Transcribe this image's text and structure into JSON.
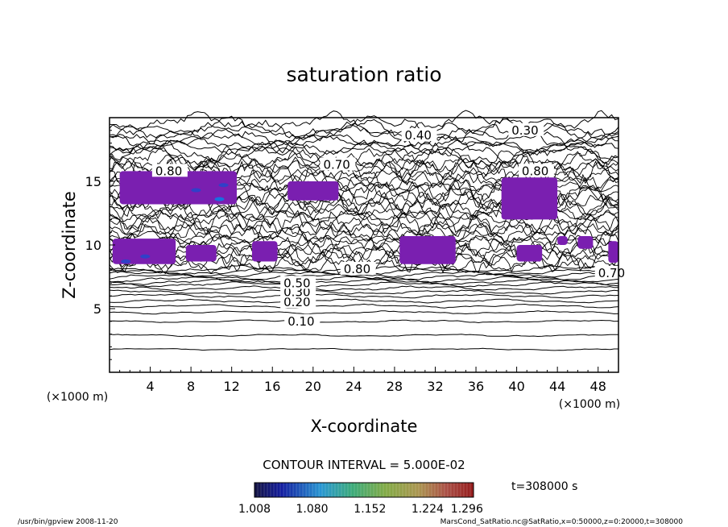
{
  "chart_data": {
    "type": "contour",
    "title": "saturation ratio",
    "xlabel": "X-coordinate",
    "ylabel": "Z-coordinate",
    "x_unit": "(×1000 m)",
    "z_unit": "(×1000 m)",
    "xlim": [
      0,
      50
    ],
    "ylim": [
      0,
      20
    ],
    "x_ticks": [
      "4",
      "8",
      "12",
      "16",
      "20",
      "24",
      "28",
      "32",
      "36",
      "40",
      "44",
      "48"
    ],
    "y_ticks": [
      "5",
      "10",
      "15"
    ],
    "contour_interval_text": "CONTOUR INTERVAL = 5.000E-02",
    "time_text": "t=308000 s",
    "colorbar_ticks": [
      "1.008",
      "1.080",
      "1.152",
      "1.224",
      "1.296"
    ],
    "contour_labels": [
      {
        "text": "0.10",
        "x": 17.5,
        "z": 4.0
      },
      {
        "text": "0.20",
        "x": 17.1,
        "z": 5.5
      },
      {
        "text": "0.30",
        "x": 17.1,
        "z": 6.3
      },
      {
        "text": "0.50",
        "x": 17.1,
        "z": 7.0
      },
      {
        "text": "0.80",
        "x": 23.0,
        "z": 8.1
      },
      {
        "text": "0.70",
        "x": 48.0,
        "z": 7.8
      },
      {
        "text": "0.30",
        "x": 39.5,
        "z": 19.0
      },
      {
        "text": "0.40",
        "x": 29.0,
        "z": 18.6
      },
      {
        "text": "0.70",
        "x": 21.0,
        "z": 16.3
      },
      {
        "text": "0.80",
        "x": 40.5,
        "z": 15.8
      },
      {
        "text": "0.80",
        "x": 4.5,
        "z": 15.8
      }
    ],
    "supersaturated_regions": [
      {
        "x": [
          1.0,
          12.5
        ],
        "z": [
          13.2,
          15.8
        ]
      },
      {
        "x": [
          17.5,
          22.5
        ],
        "z": [
          13.5,
          15.0
        ]
      },
      {
        "x": [
          0.3,
          6.5
        ],
        "z": [
          8.5,
          10.5
        ]
      },
      {
        "x": [
          7.5,
          10.5
        ],
        "z": [
          8.7,
          10.0
        ]
      },
      {
        "x": [
          14.0,
          16.5
        ],
        "z": [
          8.7,
          10.3
        ]
      },
      {
        "x": [
          28.5,
          34.0
        ],
        "z": [
          8.5,
          10.7
        ]
      },
      {
        "x": [
          38.5,
          44.0
        ],
        "z": [
          12.0,
          15.3
        ]
      },
      {
        "x": [
          40.0,
          42.5
        ],
        "z": [
          8.7,
          10.0
        ]
      },
      {
        "x": [
          44.0,
          45.0
        ],
        "z": [
          10.0,
          10.7
        ]
      },
      {
        "x": [
          46.0,
          47.5
        ],
        "z": [
          9.7,
          10.7
        ]
      },
      {
        "x": [
          49.0,
          50.0
        ],
        "z": [
          8.6,
          10.3
        ]
      }
    ]
  },
  "footer": {
    "left": "/usr/bin/gpview   2008-11-20",
    "right": "MarsCond_SatRatio.nc@SatRatio,x=0:50000,z=0:20000,t=308000"
  }
}
